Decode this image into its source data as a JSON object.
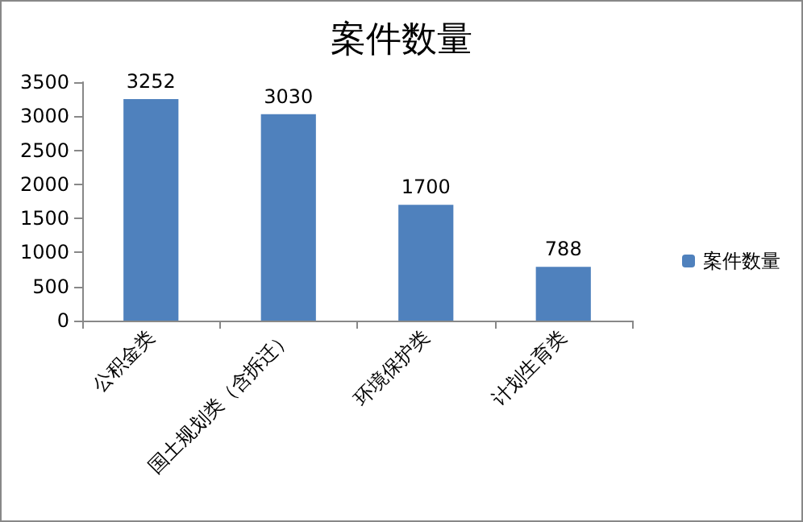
{
  "chart_data": {
    "type": "bar",
    "title": "案件数量",
    "categories": [
      "公积金类",
      "国土规划类（含拆迁）",
      "环境保护类",
      "计划生育类"
    ],
    "series": [
      {
        "name": "案件数量",
        "color": "#4f81bd",
        "values": [
          3252,
          3030,
          1700,
          788
        ]
      }
    ],
    "ylim": [
      0,
      3500
    ],
    "yticks": [
      0,
      500,
      1000,
      1500,
      2000,
      2500,
      3000,
      3500
    ],
    "data_labels": true,
    "grid": false,
    "legend": "right"
  }
}
